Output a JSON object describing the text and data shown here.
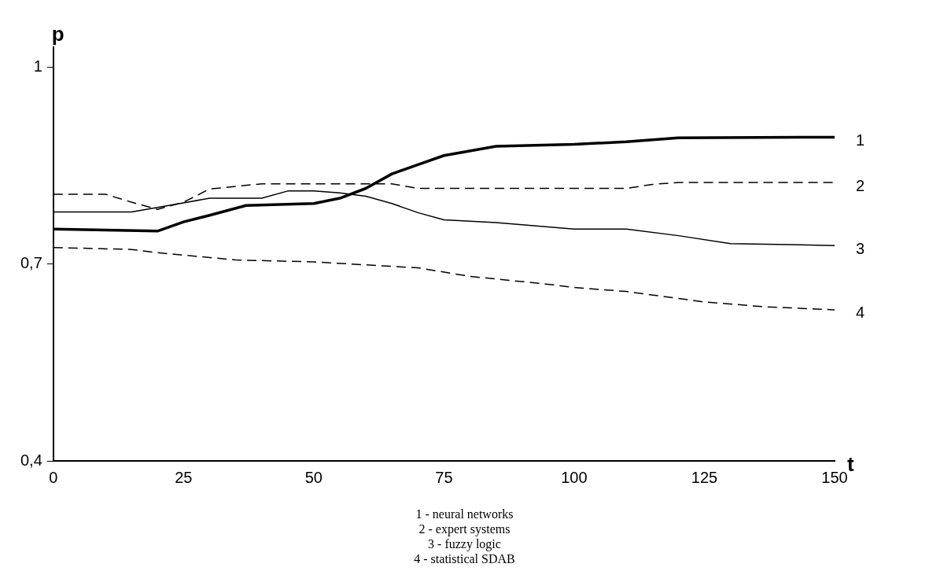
{
  "chart_data": {
    "type": "line",
    "xlabel": "t",
    "ylabel": "p",
    "xlim": [
      0,
      150
    ],
    "xticks": [
      0,
      25,
      50,
      75,
      100,
      125,
      150
    ],
    "ylim": [
      0.4,
      1.03
    ],
    "yticks": [
      {
        "value": 0.4,
        "label": "0,4"
      },
      {
        "value": 0.7,
        "label": "0,7"
      },
      {
        "value": 1,
        "label": "1"
      }
    ],
    "grid": false,
    "legend": false,
    "marker": "none",
    "series": [
      {
        "name": "1",
        "color": "#000000",
        "line_style": "solid",
        "x": [
          0,
          20,
          25,
          30,
          37,
          50,
          55,
          60,
          65,
          70,
          75,
          85,
          100,
          110,
          120,
          150
        ],
        "values": [
          0.753,
          0.75,
          0.764,
          0.774,
          0.789,
          0.792,
          0.8,
          0.815,
          0.837,
          0.851,
          0.865,
          0.879,
          0.882,
          0.886,
          0.892,
          0.893
        ]
      },
      {
        "name": "2",
        "color": "#000000",
        "line_style": "dashed",
        "x": [
          0,
          10,
          15,
          20,
          25,
          30,
          40,
          50,
          65,
          70,
          110,
          115,
          120,
          150
        ],
        "values": [
          0.806,
          0.806,
          0.794,
          0.783,
          0.794,
          0.814,
          0.822,
          0.822,
          0.822,
          0.815,
          0.815,
          0.821,
          0.824,
          0.824
        ]
      },
      {
        "name": "3",
        "color": "#000000",
        "line_style": "solid",
        "x": [
          0,
          15,
          20,
          30,
          40,
          45,
          50,
          55,
          60,
          65,
          70,
          75,
          85,
          100,
          110,
          120,
          130,
          150
        ],
        "values": [
          0.779,
          0.779,
          0.786,
          0.8,
          0.8,
          0.811,
          0.811,
          0.808,
          0.803,
          0.792,
          0.778,
          0.767,
          0.763,
          0.753,
          0.753,
          0.743,
          0.731,
          0.728
        ]
      },
      {
        "name": "4",
        "color": "#000000",
        "line_style": "dashed",
        "x": [
          0,
          15,
          20,
          35,
          50,
          70,
          80,
          95,
          100,
          110,
          125,
          136,
          150
        ],
        "values": [
          0.725,
          0.722,
          0.717,
          0.706,
          0.703,
          0.694,
          0.681,
          0.669,
          0.664,
          0.658,
          0.642,
          0.635,
          0.63
        ]
      }
    ],
    "annotations": [
      "1 - neural networks",
      "2 - expert systems",
      "3 - fuzzy logic",
      "4 - statistical SDAB"
    ]
  }
}
